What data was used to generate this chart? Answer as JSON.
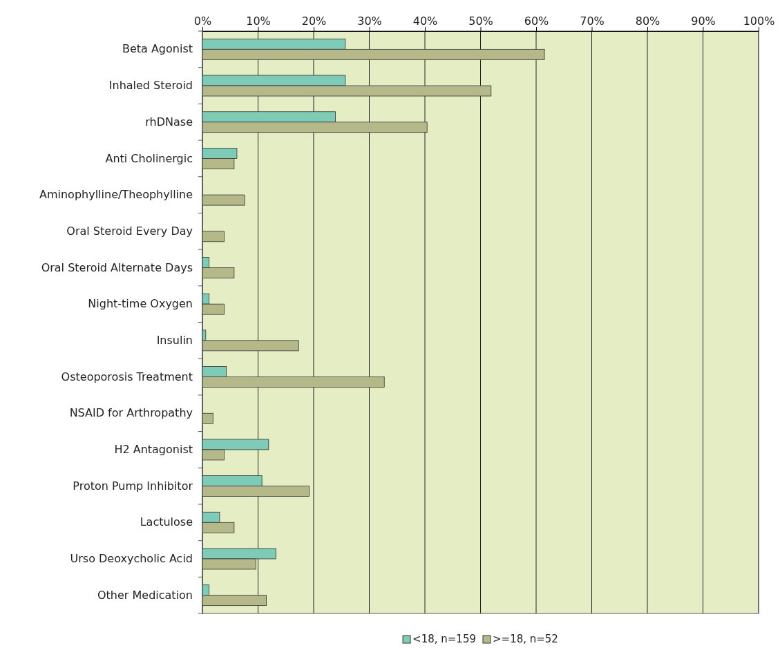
{
  "chart_data": {
    "type": "bar",
    "orientation": "horizontal",
    "categories": [
      "Beta Agonist",
      "Inhaled Steroid",
      "rhDNase",
      "Anti Cholinergic",
      "Aminophylline/Theophylline",
      "Oral Steroid Every Day",
      "Oral Steroid Alternate Days",
      "Night-time Oxygen",
      "Insulin",
      "Osteoporosis Treatment",
      "NSAID for Arthropathy",
      "H2 Antagonist",
      "Proton Pump Inhibitor",
      "Lactulose",
      "Urso Deoxycholic Acid",
      "Other Medication"
    ],
    "series": [
      {
        "name": "<18, n=159",
        "color": "#7ecbb8",
        "values": [
          25.7,
          25.7,
          23.9,
          6.2,
          0,
          0,
          1.2,
          1.2,
          0.6,
          4.3,
          0,
          11.9,
          10.7,
          3.1,
          13.2,
          1.2
        ]
      },
      {
        "name": ">=18, n=52",
        "color": "#b5b98a",
        "values": [
          61.5,
          51.9,
          40.4,
          5.7,
          7.6,
          3.9,
          5.7,
          3.9,
          17.3,
          32.7,
          1.9,
          3.9,
          19.2,
          5.7,
          9.6,
          11.5
        ]
      }
    ],
    "xlim": [
      0,
      100
    ],
    "xticks": [
      {
        "value": 0,
        "label": "0%"
      },
      {
        "value": 10,
        "label": "10%"
      },
      {
        "value": 20,
        "label": "20%"
      },
      {
        "value": 30,
        "label": "30%"
      },
      {
        "value": 40,
        "label": "40%"
      },
      {
        "value": 50,
        "label": "50%"
      },
      {
        "value": 60,
        "label": "60%"
      },
      {
        "value": 70,
        "label": "70%"
      },
      {
        "value": 80,
        "label": "80%"
      },
      {
        "value": 90,
        "label": "90%"
      },
      {
        "value": 100,
        "label": "100%"
      }
    ],
    "grid": "x",
    "legend": "bottom"
  }
}
